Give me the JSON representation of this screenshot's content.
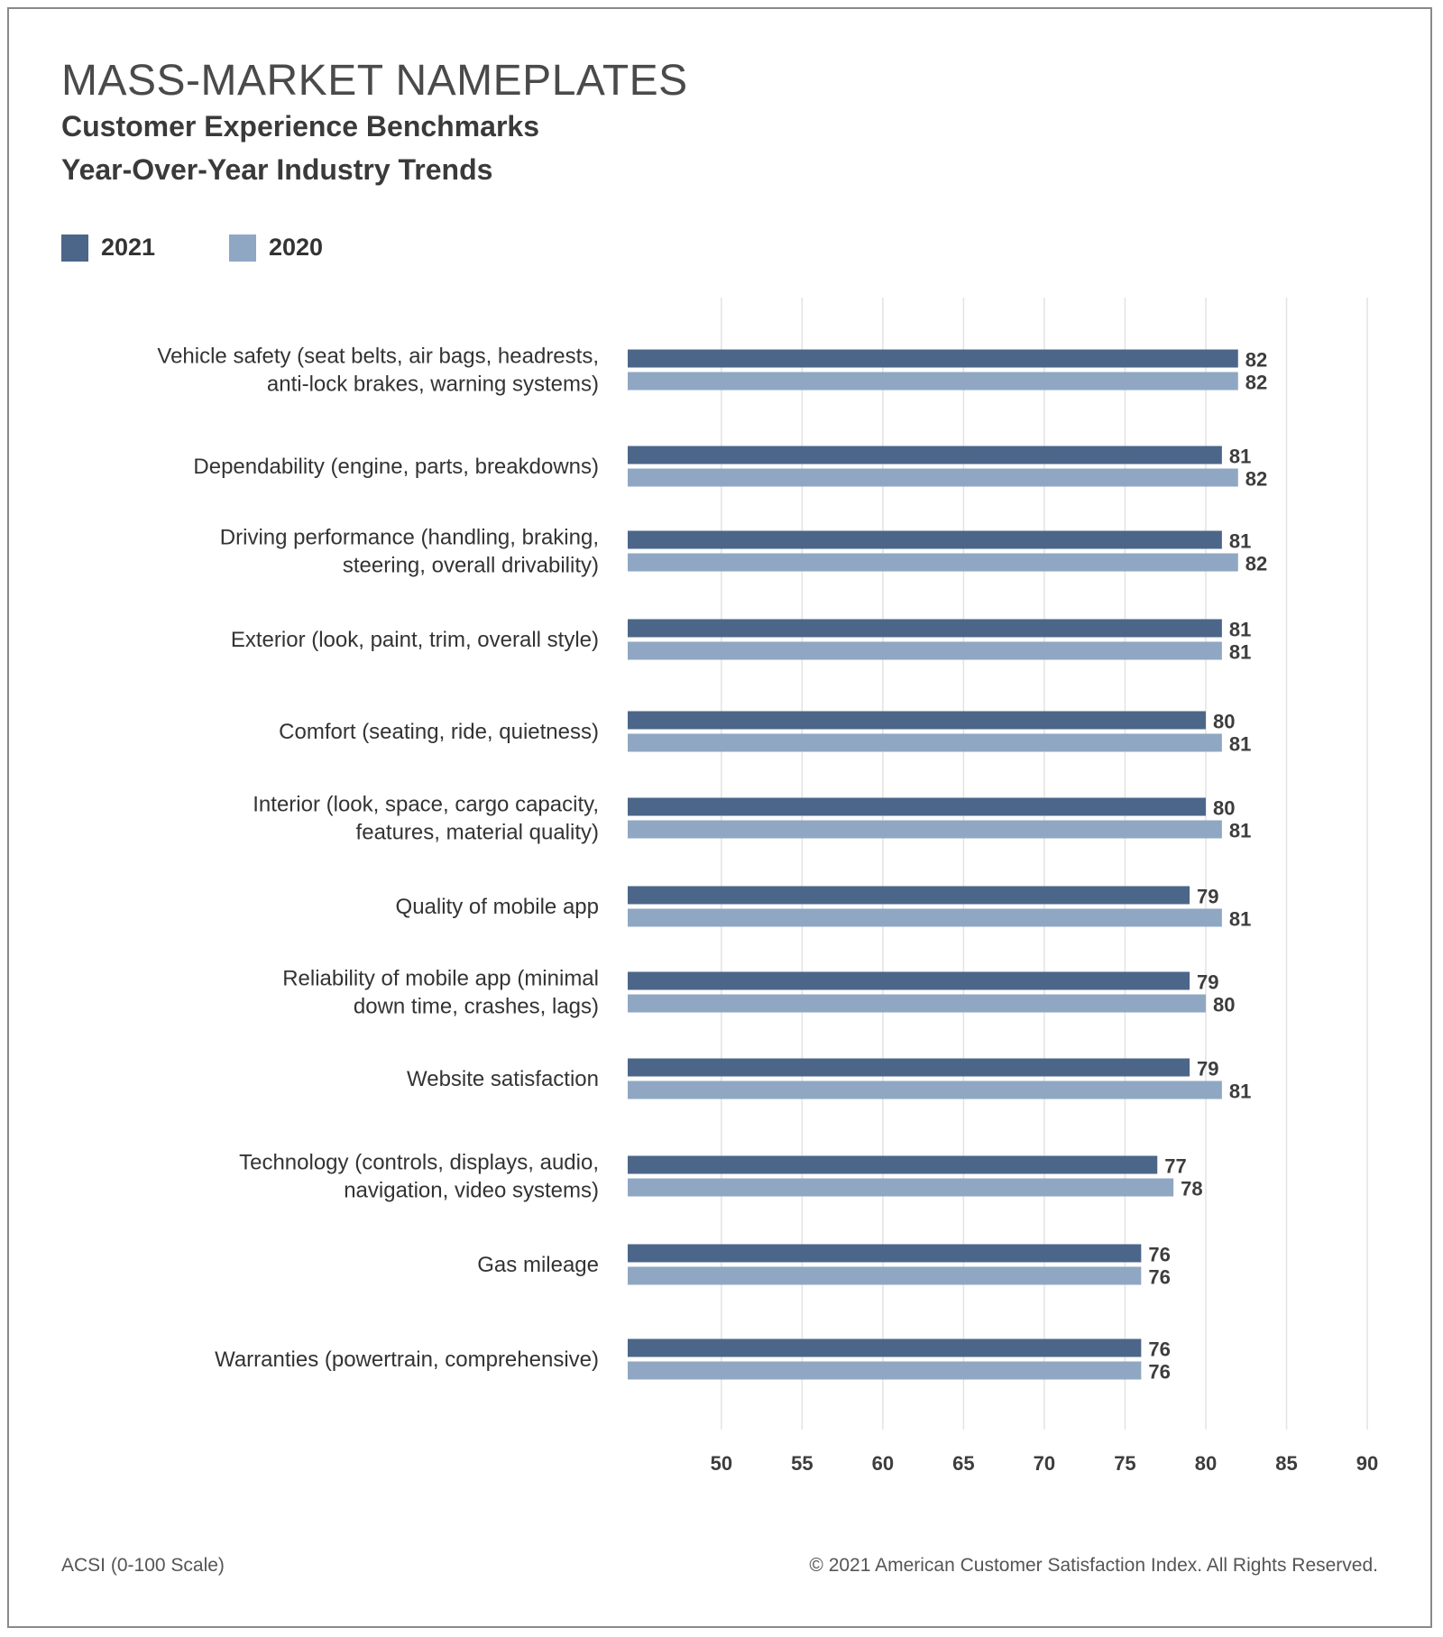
{
  "colors": {
    "series_2021": "#4c6689",
    "series_2020": "#8fa7c3",
    "grid": "#e3e3e3",
    "frame": "#8a8a8a"
  },
  "header": {
    "title": "MASS-MARKET NAMEPLATES",
    "subtitle_1": "Customer Experience Benchmarks",
    "subtitle_2": "Year-Over-Year Industry Trends"
  },
  "legend": {
    "items": [
      "2021",
      "2020"
    ]
  },
  "footer": {
    "left": "ACSI (0-100 Scale)",
    "right": "© 2021 American Customer Satisfaction Index. All Rights Reserved."
  },
  "chart_data": {
    "type": "bar",
    "orientation": "horizontal",
    "title": "MASS-MARKET NAMEPLATES",
    "subtitle": "Customer Experience Benchmarks Year-Over-Year Industry Trends",
    "categories": [
      [
        "Vehicle safety (seat belts, air bags, headrests,",
        "anti-lock brakes, warning systems)"
      ],
      [
        "Dependability (engine, parts, breakdowns)"
      ],
      [
        "Driving performance (handling, braking,",
        "steering, overall drivability)"
      ],
      [
        "Exterior (look, paint, trim, overall style)"
      ],
      [
        "Comfort (seating, ride, quietness)"
      ],
      [
        "Interior (look, space, cargo capacity,",
        "features, material quality)"
      ],
      [
        "Quality of mobile app"
      ],
      [
        "Reliability of mobile app (minimal",
        "down time, crashes, lags)"
      ],
      [
        "Website satisfaction"
      ],
      [
        "Technology (controls, displays, audio,",
        "navigation, video systems)"
      ],
      [
        "Gas mileage"
      ],
      [
        "Warranties (powertrain, comprehensive)"
      ]
    ],
    "series": [
      {
        "name": "2021",
        "values": [
          82,
          81,
          81,
          81,
          80,
          80,
          79,
          79,
          79,
          77,
          76,
          76
        ]
      },
      {
        "name": "2020",
        "values": [
          82,
          82,
          82,
          81,
          81,
          81,
          81,
          80,
          81,
          78,
          76,
          76
        ]
      }
    ],
    "xticks": [
      50,
      55,
      60,
      65,
      70,
      75,
      80,
      85,
      90
    ],
    "xlim": [
      44.2,
      90
    ],
    "grid": true,
    "legend_position": "top-left",
    "xlabel": "",
    "ylabel": ""
  }
}
